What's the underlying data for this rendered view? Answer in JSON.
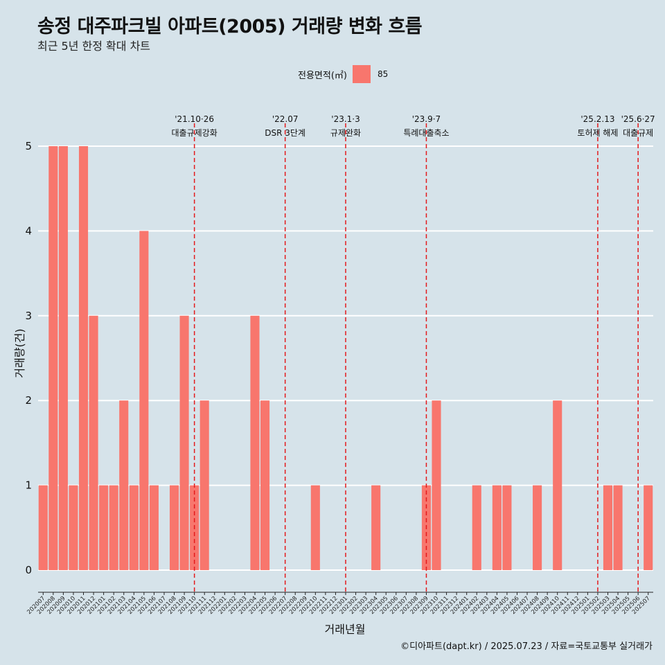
{
  "header": {
    "title": "송정 대주파크빌 아파트(2005) 거래량 변화 흐름",
    "subtitle": "최근 5년 한정 확대 차트"
  },
  "legend": {
    "title": "전용면적(㎡)",
    "items": [
      {
        "label": "85",
        "color": "#f8766d"
      }
    ]
  },
  "caption": "©디아파트(dapt.kr) / 2025.07.23 / 자료=국토교통부 실거래가",
  "chart_data": {
    "type": "bar",
    "xlabel": "거래년월",
    "ylabel": "거래량(건)",
    "ylim": [
      0,
      5
    ],
    "yticks": [
      0,
      1,
      2,
      3,
      4,
      5
    ],
    "grid": "horizontal",
    "legend_position": "top",
    "bar_color": "#f8766d",
    "categories": [
      "202007",
      "202008",
      "202009",
      "202010",
      "202011",
      "202012",
      "202101",
      "202102",
      "202103",
      "202104",
      "202105",
      "202106",
      "202107",
      "202108",
      "202109",
      "202110",
      "202111",
      "202112",
      "202201",
      "202202",
      "202203",
      "202204",
      "202205",
      "202206",
      "202207",
      "202208",
      "202209",
      "202210",
      "202211",
      "202212",
      "202301",
      "202302",
      "202303",
      "202304",
      "202305",
      "202306",
      "202307",
      "202308",
      "202309",
      "202310",
      "202311",
      "202312",
      "202401",
      "202402",
      "202403",
      "202404",
      "202405",
      "202406",
      "202407",
      "202408",
      "202409",
      "202410",
      "202411",
      "202412",
      "202501",
      "202502",
      "202503",
      "202504",
      "202505",
      "202506",
      "202507"
    ],
    "series": [
      {
        "name": "85",
        "values": [
          1,
          5,
          5,
          1,
          5,
          3,
          1,
          1,
          2,
          1,
          4,
          1,
          0,
          1,
          3,
          1,
          2,
          0,
          0,
          0,
          0,
          3,
          2,
          0,
          0,
          0,
          0,
          1,
          0,
          0,
          0,
          0,
          0,
          1,
          0,
          0,
          0,
          0,
          1,
          2,
          0,
          0,
          0,
          1,
          0,
          1,
          1,
          0,
          0,
          1,
          0,
          2,
          0,
          0,
          0,
          0,
          1,
          1,
          0,
          0,
          1
        ]
      }
    ],
    "annotations": [
      {
        "category": "202110",
        "date": "'21.10·26",
        "label": "대출규제강화",
        "line_color": "#e31a1c"
      },
      {
        "category": "202207",
        "date": "'22.07",
        "label": "DSR 3단계",
        "line_color": "#e31a1c"
      },
      {
        "category": "202301",
        "date": "'23.1·3",
        "label": "규제완화",
        "line_color": "#e31a1c"
      },
      {
        "category": "202309",
        "date": "'23.9·7",
        "label": "특례대출축소",
        "line_color": "#e31a1c"
      },
      {
        "category": "202502",
        "date": "'25.2.13",
        "label": "토허제 해제",
        "line_color": "#e31a1c"
      },
      {
        "category": "202506",
        "date": "'25.6·27",
        "label": "대출규제",
        "line_color": "#e31a1c"
      }
    ]
  }
}
